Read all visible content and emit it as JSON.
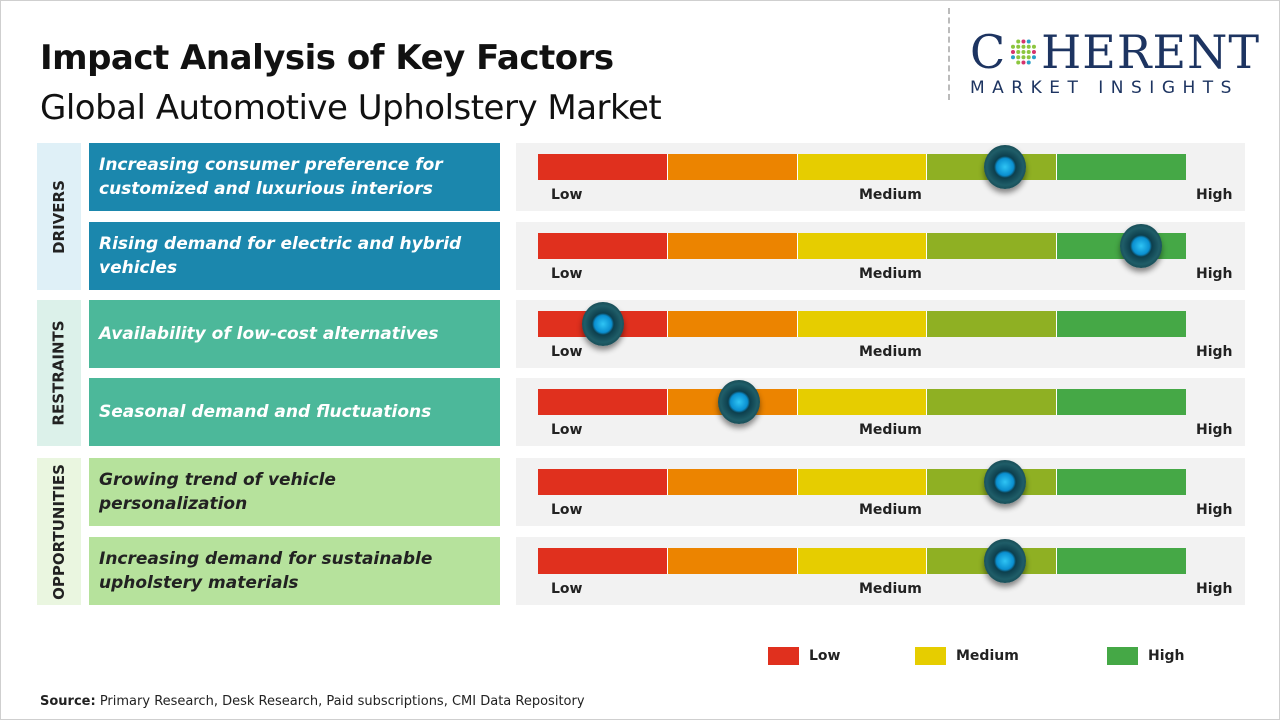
{
  "title": "Impact Analysis of Key Factors",
  "subtitle": "Global Automotive Upholstery Market",
  "logo": {
    "main": "COHERENT",
    "sub": "MARKET INSIGHTS"
  },
  "colors": {
    "drivers_box": "#1b87ad",
    "restraints_box": "#4cb89a",
    "opportunities_box": "#b6e29c",
    "drivers_label_bg": "#dff0f7",
    "restraints_label_bg": "#dcf1ea",
    "opportunities_label_bg": "#eaf6e0",
    "scale": [
      "#e0301e",
      "#ec8400",
      "#e6cd00",
      "#8fb023",
      "#45a846"
    ]
  },
  "scale_labels": {
    "low": "Low",
    "medium": "Medium",
    "high": "High"
  },
  "chart_data": {
    "type": "gauge",
    "scale": "Low to High (percent of scale)",
    "categories": [
      {
        "name": "DRIVERS",
        "factors": [
          {
            "text": "Increasing consumer preference for customized and luxurious interiors",
            "impact": 72
          },
          {
            "text": "Rising demand for electric and hybrid vehicles",
            "impact": 93
          }
        ]
      },
      {
        "name": "RESTRAINTS",
        "factors": [
          {
            "text": "Availability of low-cost alternatives",
            "impact": 10
          },
          {
            "text": "Seasonal demand and fluctuations",
            "impact": 31
          }
        ]
      },
      {
        "name": "OPPORTUNITIES",
        "factors": [
          {
            "text": "Growing trend of vehicle personalization",
            "impact": 72
          },
          {
            "text": "Increasing demand for sustainable upholstery materials",
            "impact": 72
          }
        ]
      }
    ],
    "legend": [
      {
        "label": "Low",
        "color": "#e0301e"
      },
      {
        "label": "Medium",
        "color": "#e6cd00"
      },
      {
        "label": "High",
        "color": "#45a846"
      }
    ]
  },
  "source": {
    "label": "Source:",
    "text": " Primary Research, Desk Research, Paid subscriptions, CMI Data Repository"
  }
}
